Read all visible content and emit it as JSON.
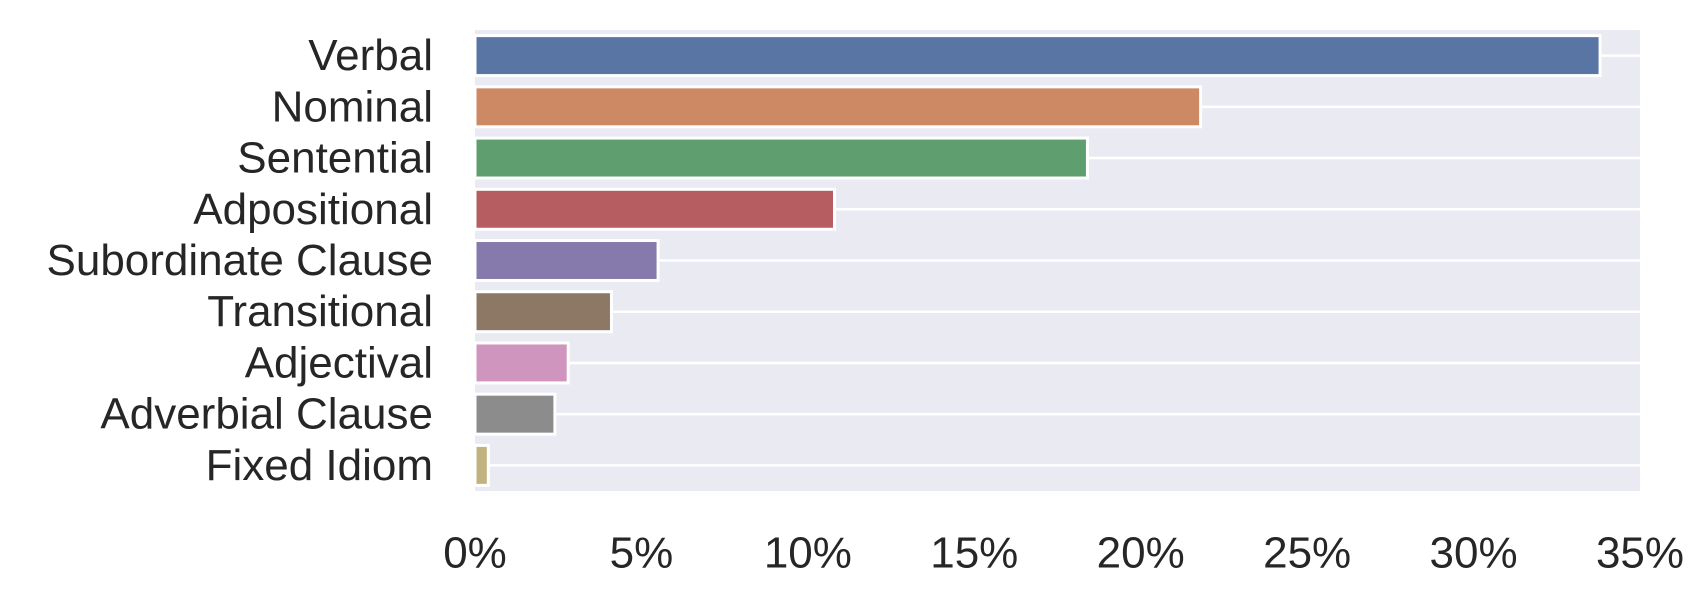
{
  "chart_data": {
    "type": "bar",
    "orientation": "horizontal",
    "categories": [
      "Verbal",
      "Nominal",
      "Sentential",
      "Adpositional",
      "Subordinate Clause",
      "Transitional",
      "Adjectival",
      "Adverbial Clause",
      "Fixed Idiom"
    ],
    "values": [
      33.8,
      21.8,
      18.4,
      10.8,
      5.5,
      4.1,
      2.8,
      2.4,
      0.4
    ],
    "colors": [
      "#5875a4",
      "#cc8963",
      "#5f9e6e",
      "#b55d60",
      "#857aab",
      "#8d7866",
      "#d095bf",
      "#8c8c8c",
      "#c1b37f"
    ],
    "xlim": [
      0,
      35
    ],
    "x_ticks": [
      0,
      5,
      10,
      15,
      20,
      25,
      30,
      35
    ],
    "x_tick_labels": [
      "0%",
      "5%",
      "10%",
      "15%",
      "20%",
      "25%",
      "30%",
      "35%"
    ],
    "x_unit": "percent",
    "grid": true,
    "background": "#eaeaf2",
    "grid_color": "#ffffff",
    "text_color": "#262626",
    "title": "",
    "xlabel": "",
    "ylabel": ""
  }
}
